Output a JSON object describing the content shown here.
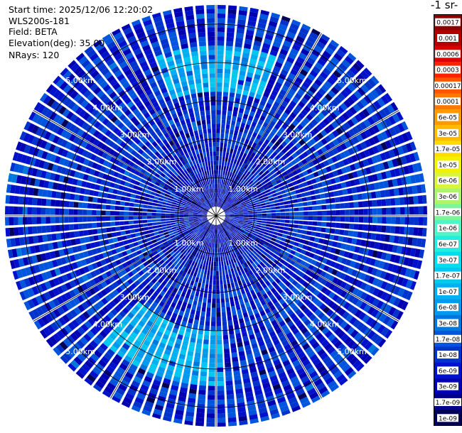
{
  "header": {
    "start_time": "Start time: 2025/12/06 12:20:02",
    "device": "WLS200s-181",
    "field": "Field: BETA",
    "elevation": "Elevation(deg): 35.00",
    "nrays": "NRays: 120"
  },
  "colorbar": {
    "title": "-1 sr-",
    "labels": [
      "0.0017",
      "0.001",
      "0.0006",
      "0.0003",
      "0.00017",
      "0.0001",
      "6e-05",
      "3e-05",
      "1.7e-05",
      "1e-05",
      "6e-06",
      "3e-06",
      "1.7e-06",
      "1e-06",
      "6e-07",
      "3e-07",
      "1.7e-07",
      "1e-07",
      "6e-08",
      "3e-08",
      "1.7e-08",
      "1e-08",
      "6e-09",
      "3e-09",
      "1.7e-09",
      "1e-09"
    ],
    "colors": [
      "#8b0000",
      "#b20000",
      "#dd0000",
      "#ff2200",
      "#ff5500",
      "#ff7700",
      "#ff9900",
      "#ffbb00",
      "#ffdd00",
      "#f2f200",
      "#d8f53a",
      "#aaf56a",
      "#7df59a",
      "#4ff5c4",
      "#22eedd",
      "#00ddee",
      "#00c8f0",
      "#00b0f0",
      "#0099ee",
      "#0077dd",
      "#0055dd",
      "#0033cc",
      "#0011cc",
      "#0000b3",
      "#000088",
      "#000055"
    ]
  },
  "chart_data": {
    "type": "polar_ppi",
    "title": "",
    "field": "BETA",
    "elevation_deg": 35.0,
    "n_rays": 120,
    "range_rings_km": [
      1,
      2,
      3,
      4,
      5
    ],
    "ring_labels": [
      "1.00km",
      "2.00km",
      "3.00km",
      "4.00km",
      "5.00km"
    ],
    "max_range_km": 5.5,
    "color_scale": "log",
    "value_range": [
      1e-09,
      0.0017
    ],
    "typical_value": 1e-08,
    "enhanced_sectors": [
      {
        "azimuth_deg": 0,
        "range_km": [
          3.2,
          4.4
        ],
        "value": 1e-07
      },
      {
        "azimuth_deg": 200,
        "range_km": [
          3.0,
          4.4
        ],
        "value": 1e-07
      }
    ]
  }
}
